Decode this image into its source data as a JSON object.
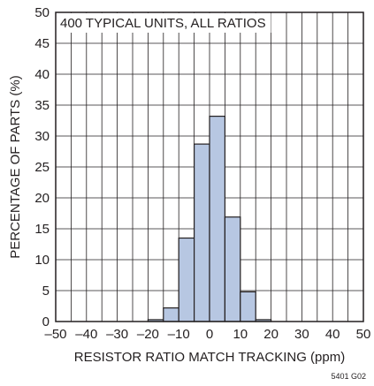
{
  "chart_data": {
    "type": "bar",
    "annotation": "400 TYPICAL UNITS, ALL RATIOS",
    "xlabel": "RESISTOR RATIO MATCH TRACKING (ppm)",
    "ylabel": "PERCENTAGE OF PARTS (%)",
    "figure_code": "5401 G02",
    "xlim": [
      -50,
      50
    ],
    "ylim": [
      0,
      50
    ],
    "xticks": [
      -50,
      -40,
      -30,
      -20,
      -10,
      0,
      10,
      20,
      30,
      40,
      50
    ],
    "xtick_labels": [
      "–50",
      "–40",
      "–30",
      "–20",
      "–10",
      "0",
      "10",
      "20",
      "30",
      "40",
      "50"
    ],
    "yticks": [
      0,
      5,
      10,
      15,
      20,
      25,
      30,
      35,
      40,
      45,
      50
    ],
    "ytick_labels": [
      "0",
      "5",
      "10",
      "15",
      "20",
      "25",
      "30",
      "35",
      "40",
      "45",
      "50"
    ],
    "bin_width": 5,
    "bins": [
      {
        "start": -20,
        "end": -15,
        "value": 0.3
      },
      {
        "start": -15,
        "end": -10,
        "value": 2.2
      },
      {
        "start": -10,
        "end": -5,
        "value": 13.5
      },
      {
        "start": -5,
        "end": 0,
        "value": 28.7
      },
      {
        "start": 0,
        "end": 5,
        "value": 33.2
      },
      {
        "start": 5,
        "end": 10,
        "value": 16.9
      },
      {
        "start": 10,
        "end": 15,
        "value": 4.8
      },
      {
        "start": 15,
        "end": 20,
        "value": 0.3
      }
    ],
    "grid": true,
    "bar_color": "#b7c7e2",
    "bar_edge_color": "#231f20",
    "grid_color": "#231f20"
  }
}
